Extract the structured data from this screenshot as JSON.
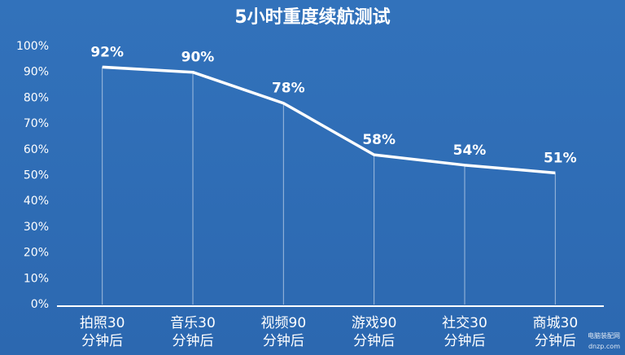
{
  "chart_data": {
    "type": "line",
    "title": "5小时重度续航测试",
    "categories": [
      "拍照30\n分钟后",
      "音乐30\n分钟后",
      "视频90\n分钟后",
      "游戏90\n分钟后",
      "社交30\n分钟后",
      "商城30\n分钟后"
    ],
    "values": [
      92,
      90,
      78,
      58,
      54,
      51
    ],
    "value_labels": [
      "92%",
      "90%",
      "78%",
      "58%",
      "54%",
      "51%"
    ],
    "color": "#ffffff",
    "ylim": [
      0,
      100
    ],
    "yticks": [
      {
        "value": 0,
        "label": "0%"
      },
      {
        "value": 10,
        "label": "10%"
      },
      {
        "value": 20,
        "label": "20%"
      },
      {
        "value": 30,
        "label": "30%"
      },
      {
        "value": 40,
        "label": "40%"
      },
      {
        "value": 50,
        "label": "50%"
      },
      {
        "value": 60,
        "label": "60%"
      },
      {
        "value": 70,
        "label": "70%"
      },
      {
        "value": 80,
        "label": "80%"
      },
      {
        "value": 90,
        "label": "90%"
      },
      {
        "value": 100,
        "label": "100%"
      }
    ],
    "grid": false,
    "drop_lines": true,
    "watermark": [
      "电脑装配网",
      "dnzp.com"
    ]
  }
}
